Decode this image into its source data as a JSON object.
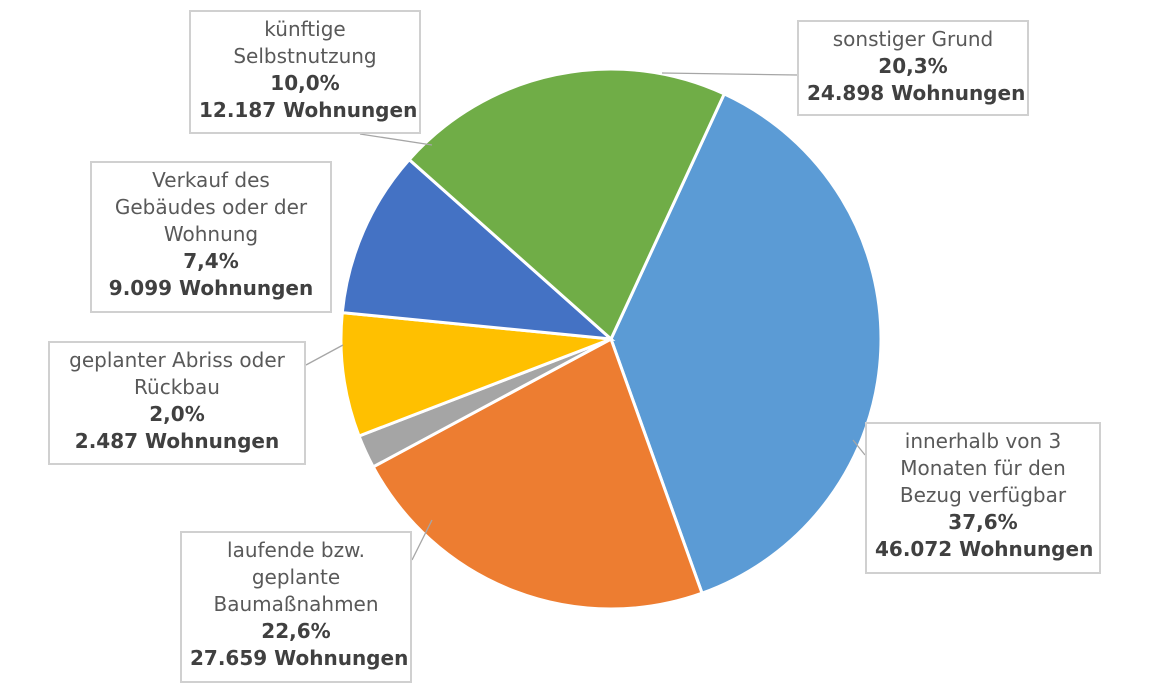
{
  "chart_data": {
    "type": "pie",
    "start_angle_deg": 24.8,
    "direction": "clockwise",
    "slices": [
      {
        "id": "innerhalb",
        "category_lines": [
          "innerhalb von 3",
          "Monaten für den",
          "Bezug verfügbar"
        ],
        "percent": 37.6,
        "percent_label": "37,6%",
        "count": 46072,
        "count_label": "46.072 Wohnungen",
        "color": "#5b9bd5"
      },
      {
        "id": "baumassnahmen",
        "category_lines": [
          "laufende bzw.",
          "geplante",
          "Baumaßnahmen"
        ],
        "percent": 22.6,
        "percent_label": "22,6%",
        "count": 27659,
        "count_label": "27.659 Wohnungen",
        "color": "#ed7d31"
      },
      {
        "id": "abriss",
        "category_lines": [
          "geplanter Abriss oder",
          "Rückbau"
        ],
        "percent": 2.0,
        "percent_label": "2,0%",
        "count": 2487,
        "count_label": "2.487 Wohnungen",
        "color": "#a5a5a5"
      },
      {
        "id": "verkauf",
        "category_lines": [
          "Verkauf des",
          "Gebäudes oder der",
          "Wohnung"
        ],
        "percent": 7.4,
        "percent_label": "7,4%",
        "count": 9099,
        "count_label": "9.099 Wohnungen",
        "color": "#ffc000"
      },
      {
        "id": "selbstnutzung",
        "category_lines": [
          "künftige",
          "Selbstnutzung"
        ],
        "percent": 10.0,
        "percent_label": "10,0%",
        "count": 12187,
        "count_label": "12.187 Wohnungen",
        "color": "#4472c4"
      },
      {
        "id": "sonstiger",
        "category_lines": [
          "sonstiger Grund"
        ],
        "percent": 20.3,
        "percent_label": "20,3%",
        "count": 24898,
        "count_label": "24.898 Wohnungen",
        "color": "#70ad47"
      }
    ]
  }
}
